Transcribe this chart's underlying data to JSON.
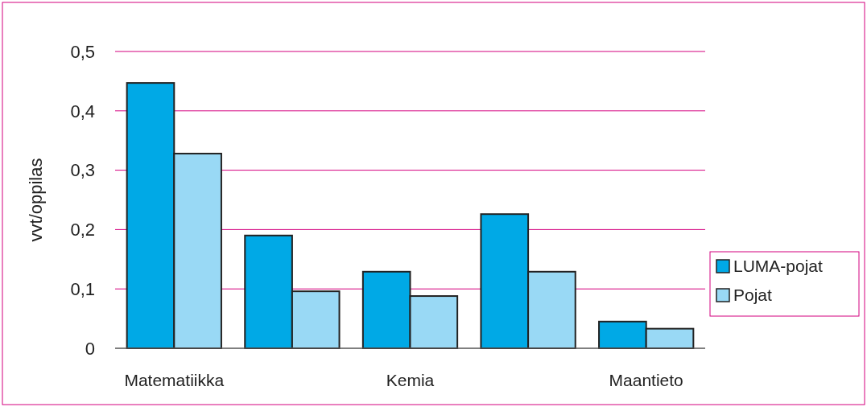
{
  "chart_data": {
    "type": "bar",
    "ylabel": "vvt/oppilas",
    "categories": [
      "Matematiikka",
      null,
      "Kemia",
      null,
      "Maantieto"
    ],
    "series": [
      {
        "name": "LUMA-pojat",
        "color": "#00a9e6",
        "values": [
          0.447,
          0.19,
          0.129,
          0.226,
          0.045
        ]
      },
      {
        "name": "Pojat",
        "color": "#99d9f5",
        "values": [
          0.328,
          0.096,
          0.088,
          0.129,
          0.033
        ]
      }
    ],
    "ylim": [
      0,
      0.5
    ],
    "yticks": [
      {
        "value": 0,
        "label": "0"
      },
      {
        "value": 0.1,
        "label": "0,1"
      },
      {
        "value": 0.2,
        "label": "0,2"
      },
      {
        "value": 0.3,
        "label": "0,3"
      },
      {
        "value": 0.4,
        "label": "0,4"
      },
      {
        "value": 0.5,
        "label": "0,5"
      }
    ],
    "grid": "y",
    "legend": "right"
  }
}
